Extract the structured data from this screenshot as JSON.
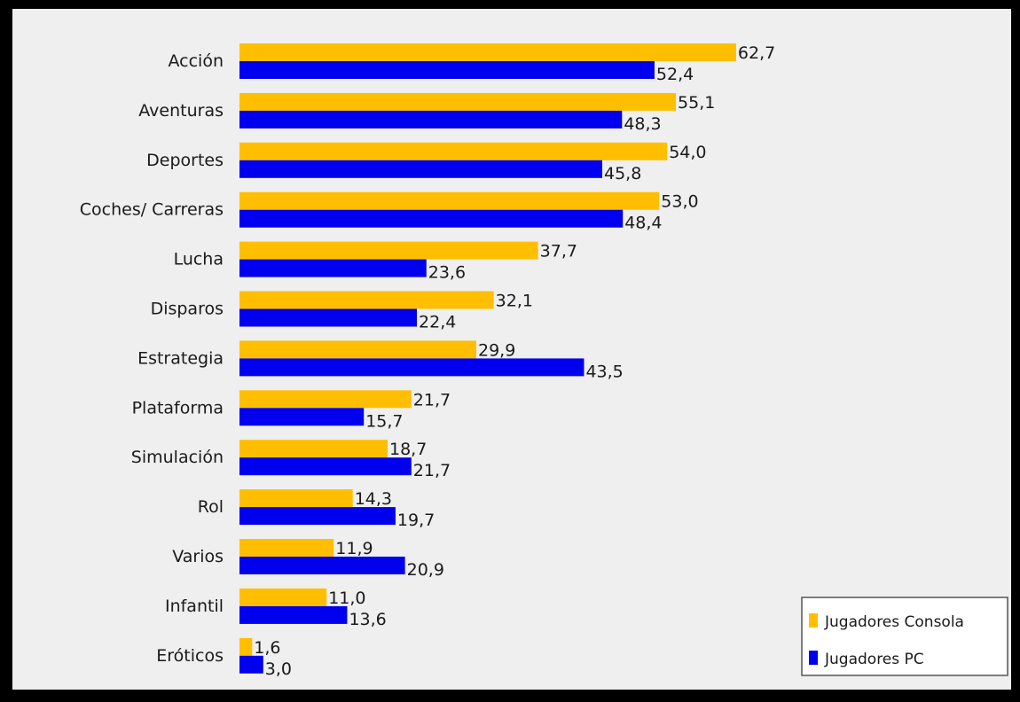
{
  "chart_data": {
    "type": "bar",
    "orientation": "horizontal",
    "categories": [
      "Acción",
      "Aventuras",
      "Deportes",
      "Coches/ Carreras",
      "Lucha",
      "Disparos",
      "Estrategia",
      "Plataforma",
      "Simulación",
      "Rol",
      "Varios",
      "Infantil",
      "Eróticos"
    ],
    "series": [
      {
        "name": "Jugadores Consola",
        "color": "#ffbf00",
        "values": [
          62.7,
          55.1,
          54.0,
          53.0,
          37.7,
          32.1,
          29.9,
          21.7,
          18.7,
          14.3,
          11.9,
          11.0,
          1.6
        ],
        "labels": [
          "62,7",
          "55,1",
          "54,0",
          "53,0",
          "37,7",
          "32,1",
          "29,9",
          "21,7",
          "18,7",
          "14,3",
          "11,9",
          "11,0",
          "1,6"
        ]
      },
      {
        "name": "Jugadores PC",
        "color": "#0000ee",
        "values": [
          52.4,
          48.3,
          45.8,
          48.4,
          23.6,
          22.4,
          43.5,
          15.7,
          21.7,
          19.7,
          20.9,
          13.6,
          3.0
        ],
        "labels": [
          "52,4",
          "48,3",
          "45,8",
          "48,4",
          "23,6",
          "22,4",
          "43,5",
          "15,7",
          "21,7",
          "19,7",
          "20,9",
          "13,6",
          "3,0"
        ]
      }
    ],
    "xlim": [
      0,
      70
    ],
    "grid": false,
    "legend": "bottom-right"
  }
}
